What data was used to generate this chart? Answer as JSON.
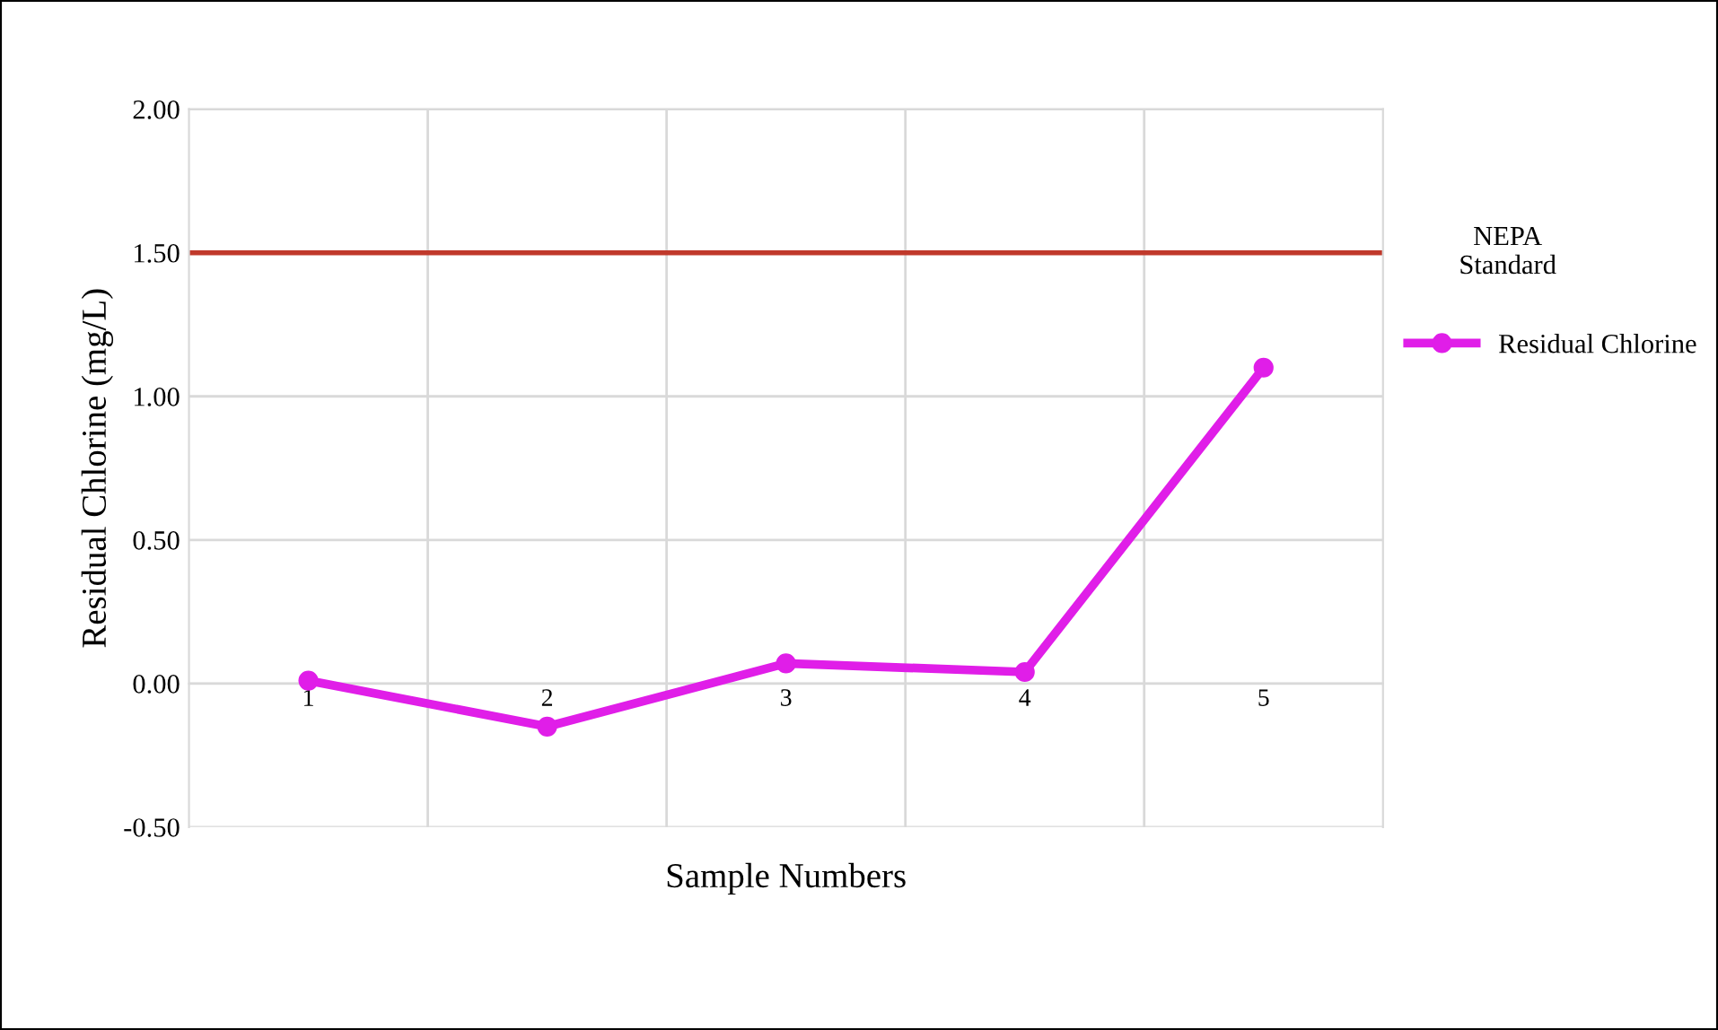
{
  "chart_data": {
    "type": "line",
    "xlabel": "Sample Numbers",
    "ylabel": "Residual Chlorine (mg/L)",
    "categories": [
      "1",
      "2",
      "3",
      "4",
      "5"
    ],
    "series": [
      {
        "name": "Residual Chlorine",
        "color": "#e01ee8",
        "values": [
          0.01,
          -0.15,
          0.07,
          0.04,
          1.1
        ]
      }
    ],
    "ylim": [
      -0.5,
      2.0
    ],
    "yticks": [
      {
        "value": -0.5,
        "label": "-0.50"
      },
      {
        "value": 0,
        "label": "0.00"
      },
      {
        "value": 0.5,
        "label": "0.50"
      },
      {
        "value": 1.0,
        "label": "1.00"
      },
      {
        "value": 1.5,
        "label": "1.50"
      },
      {
        "value": 2.0,
        "label": "2.00"
      }
    ],
    "ref_lines": [
      {
        "axis": "y",
        "value": 1.5,
        "label": "NEPA\nStandard",
        "color": "#c0392b"
      }
    ],
    "grid": true,
    "legend": "right",
    "marker": "circle",
    "line_style": "solid"
  }
}
